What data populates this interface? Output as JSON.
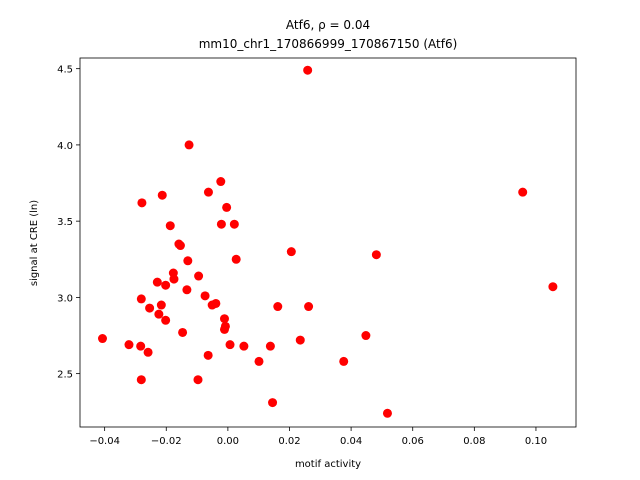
{
  "chart_data": {
    "type": "scatter",
    "title": "Atf6, ρ = 0.04",
    "subtitle": "mm10_chr1_170866999_170867150 (Atf6)",
    "xlabel": "motif activity",
    "ylabel": "signal at CRE (ln)",
    "xlim": [
      -0.048,
      0.113
    ],
    "ylim": [
      2.15,
      4.57
    ],
    "xticks": [
      -0.04,
      -0.02,
      0.0,
      0.02,
      0.04,
      0.06,
      0.08,
      0.1
    ],
    "xtick_labels": [
      "−0.04",
      "−0.02",
      "0.00",
      "0.02",
      "0.04",
      "0.06",
      "0.08",
      "0.10"
    ],
    "yticks": [
      2.5,
      3.0,
      3.5,
      4.0,
      4.5
    ],
    "ytick_labels": [
      "2.5",
      "3.0",
      "3.5",
      "4.0",
      "4.5"
    ],
    "grid": false,
    "marker_color": "#ff0000",
    "points": [
      {
        "x": -0.0407,
        "y": 2.73
      },
      {
        "x": -0.0321,
        "y": 2.69
      },
      {
        "x": -0.0283,
        "y": 2.68
      },
      {
        "x": -0.0281,
        "y": 2.46
      },
      {
        "x": -0.0281,
        "y": 2.99
      },
      {
        "x": -0.0279,
        "y": 3.62
      },
      {
        "x": -0.0259,
        "y": 2.64
      },
      {
        "x": -0.0254,
        "y": 2.93
      },
      {
        "x": -0.0229,
        "y": 3.1
      },
      {
        "x": -0.0224,
        "y": 2.89
      },
      {
        "x": -0.0216,
        "y": 2.95
      },
      {
        "x": -0.0213,
        "y": 3.67
      },
      {
        "x": -0.0202,
        "y": 2.85
      },
      {
        "x": -0.0202,
        "y": 3.08
      },
      {
        "x": -0.0187,
        "y": 3.47
      },
      {
        "x": -0.0177,
        "y": 3.16
      },
      {
        "x": -0.0175,
        "y": 3.12
      },
      {
        "x": -0.0159,
        "y": 3.35
      },
      {
        "x": -0.0154,
        "y": 3.34
      },
      {
        "x": -0.0147,
        "y": 2.77
      },
      {
        "x": -0.0133,
        "y": 3.05
      },
      {
        "x": -0.013,
        "y": 3.24
      },
      {
        "x": -0.0126,
        "y": 4.0
      },
      {
        "x": -0.0097,
        "y": 2.46
      },
      {
        "x": -0.0095,
        "y": 3.14
      },
      {
        "x": -0.0074,
        "y": 3.01
      },
      {
        "x": -0.0064,
        "y": 2.62
      },
      {
        "x": -0.0063,
        "y": 3.69
      },
      {
        "x": -0.0051,
        "y": 2.95
      },
      {
        "x": -0.0039,
        "y": 2.96
      },
      {
        "x": -0.0023,
        "y": 3.76
      },
      {
        "x": -0.0021,
        "y": 3.48
      },
      {
        "x": -0.0011,
        "y": 2.86
      },
      {
        "x": -0.0011,
        "y": 2.79
      },
      {
        "x": -0.0008,
        "y": 2.81
      },
      {
        "x": -0.0004,
        "y": 3.59
      },
      {
        "x": 0.0007,
        "y": 2.69
      },
      {
        "x": 0.0021,
        "y": 3.48
      },
      {
        "x": 0.0027,
        "y": 3.25
      },
      {
        "x": 0.0052,
        "y": 2.68
      },
      {
        "x": 0.0101,
        "y": 2.58
      },
      {
        "x": 0.0138,
        "y": 2.68
      },
      {
        "x": 0.0145,
        "y": 2.31
      },
      {
        "x": 0.0162,
        "y": 2.94
      },
      {
        "x": 0.0206,
        "y": 3.3
      },
      {
        "x": 0.0235,
        "y": 2.72
      },
      {
        "x": 0.0259,
        "y": 4.49
      },
      {
        "x": 0.0262,
        "y": 2.94
      },
      {
        "x": 0.0376,
        "y": 2.58
      },
      {
        "x": 0.0448,
        "y": 2.75
      },
      {
        "x": 0.0482,
        "y": 3.28
      },
      {
        "x": 0.0518,
        "y": 2.24
      },
      {
        "x": 0.0957,
        "y": 3.69
      },
      {
        "x": 0.1055,
        "y": 3.07
      }
    ]
  }
}
